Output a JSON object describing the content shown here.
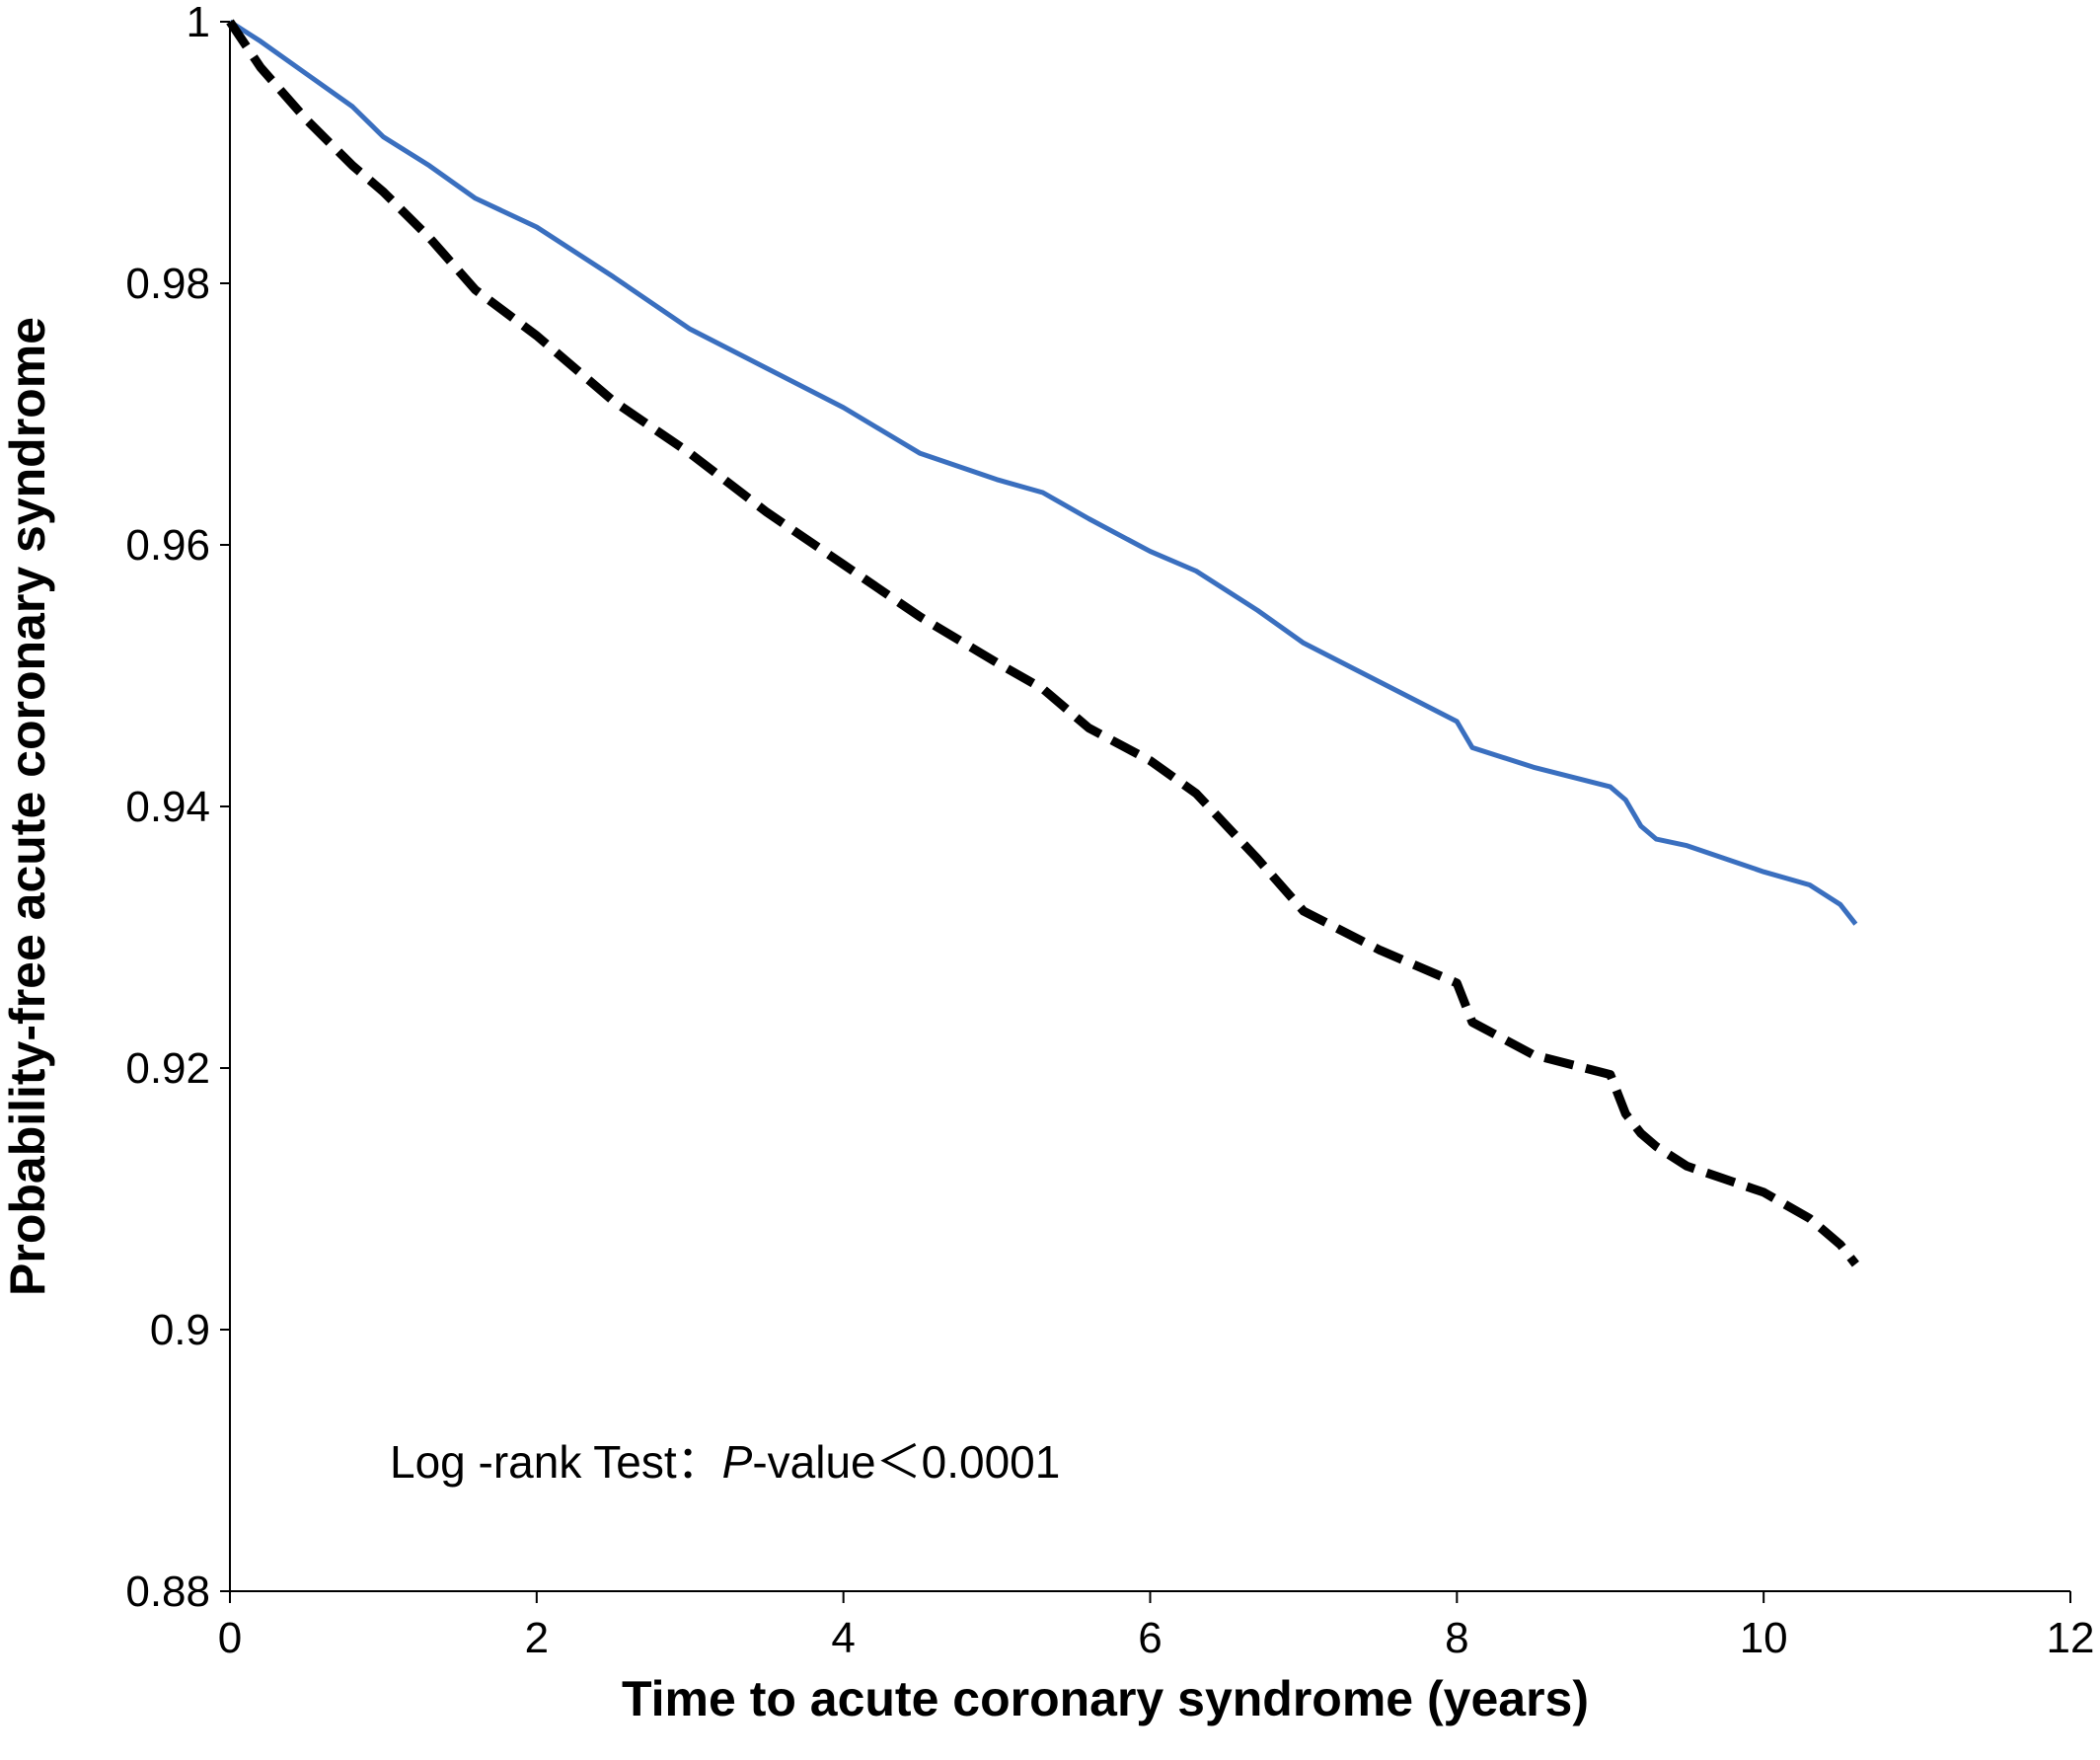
{
  "chart_data": {
    "type": "line",
    "title": "",
    "xlabel": "Time to acute coronary syndrome (years)",
    "ylabel": "Probability-free acute coronary syndrome",
    "xlim": [
      0,
      12
    ],
    "ylim": [
      0.88,
      1
    ],
    "x_ticks": [
      "0",
      "2",
      "4",
      "6",
      "8",
      "10",
      "12"
    ],
    "y_ticks": [
      "0.88",
      "0.9",
      "0.92",
      "0.94",
      "0.96",
      "0.98",
      "1"
    ],
    "grid": false,
    "legend": "none",
    "annotation": {
      "prefix": "Log -rank Test：",
      "p_symbol": "P",
      "suffix": "-value＜0.0001"
    },
    "series": [
      {
        "color": "#3a6fbf",
        "dash": "solid",
        "x": [
          0,
          0.2,
          0.5,
          0.8,
          1.0,
          1.3,
          1.6,
          2.0,
          2.5,
          3.0,
          3.5,
          4.0,
          4.5,
          5.0,
          5.3,
          5.6,
          6.0,
          6.3,
          6.7,
          7.0,
          7.5,
          8.0,
          8.1,
          8.5,
          9.0,
          9.1,
          9.2,
          9.3,
          9.5,
          10.0,
          10.3,
          10.5,
          10.6
        ],
        "y": [
          1.0,
          0.9985,
          0.996,
          0.9935,
          0.9912,
          0.989,
          0.9865,
          0.9843,
          0.9805,
          0.9765,
          0.9735,
          0.9705,
          0.967,
          0.965,
          0.964,
          0.962,
          0.9595,
          0.958,
          0.955,
          0.9525,
          0.9495,
          0.9465,
          0.9445,
          0.943,
          0.9415,
          0.9405,
          0.9385,
          0.9375,
          0.937,
          0.935,
          0.934,
          0.9325,
          0.931
        ]
      },
      {
        "color": "#000000",
        "dash": "dashed",
        "x": [
          0,
          0.2,
          0.5,
          0.8,
          1.0,
          1.3,
          1.6,
          2.0,
          2.5,
          3.0,
          3.5,
          4.0,
          4.5,
          5.0,
          5.3,
          5.6,
          6.0,
          6.3,
          6.7,
          7.0,
          7.5,
          8.0,
          8.1,
          8.5,
          9.0,
          9.1,
          9.2,
          9.3,
          9.5,
          10.0,
          10.3,
          10.5,
          10.6
        ],
        "y": [
          1.0,
          0.9965,
          0.9925,
          0.989,
          0.987,
          0.9835,
          0.9795,
          0.976,
          0.971,
          0.967,
          0.9625,
          0.9585,
          0.9545,
          0.951,
          0.949,
          0.946,
          0.9435,
          0.941,
          0.936,
          0.932,
          0.929,
          0.9265,
          0.9235,
          0.921,
          0.9195,
          0.9165,
          0.915,
          0.914,
          0.9125,
          0.9105,
          0.9085,
          0.9065,
          0.905
        ]
      }
    ]
  }
}
